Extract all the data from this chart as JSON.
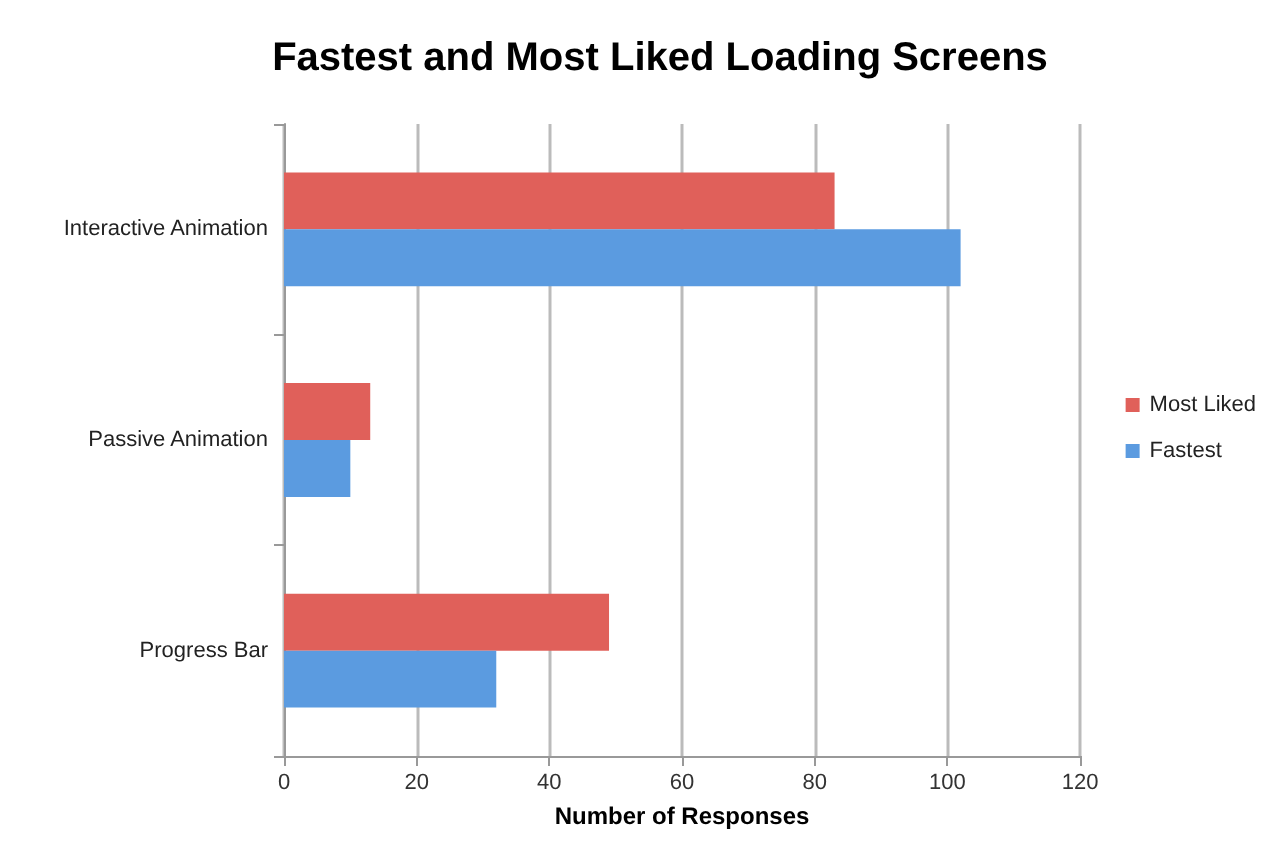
{
  "chart_data": {
    "type": "bar",
    "orientation": "horizontal",
    "title": "Fastest and Most Liked Loading Screens",
    "xlabel": "Number of Responses",
    "categories": [
      "Interactive Animation",
      "Passive Animation",
      "Progress Bar"
    ],
    "series": [
      {
        "name": "Most Liked",
        "color": "#e0605a",
        "values": [
          83,
          13,
          49
        ]
      },
      {
        "name": "Fastest",
        "color": "#5b9be0",
        "values": [
          102,
          10,
          32
        ]
      }
    ],
    "xlim": [
      0,
      120
    ],
    "xticks": [
      0,
      20,
      40,
      60,
      80,
      100,
      120
    ],
    "grid": "x",
    "legend": "right"
  }
}
